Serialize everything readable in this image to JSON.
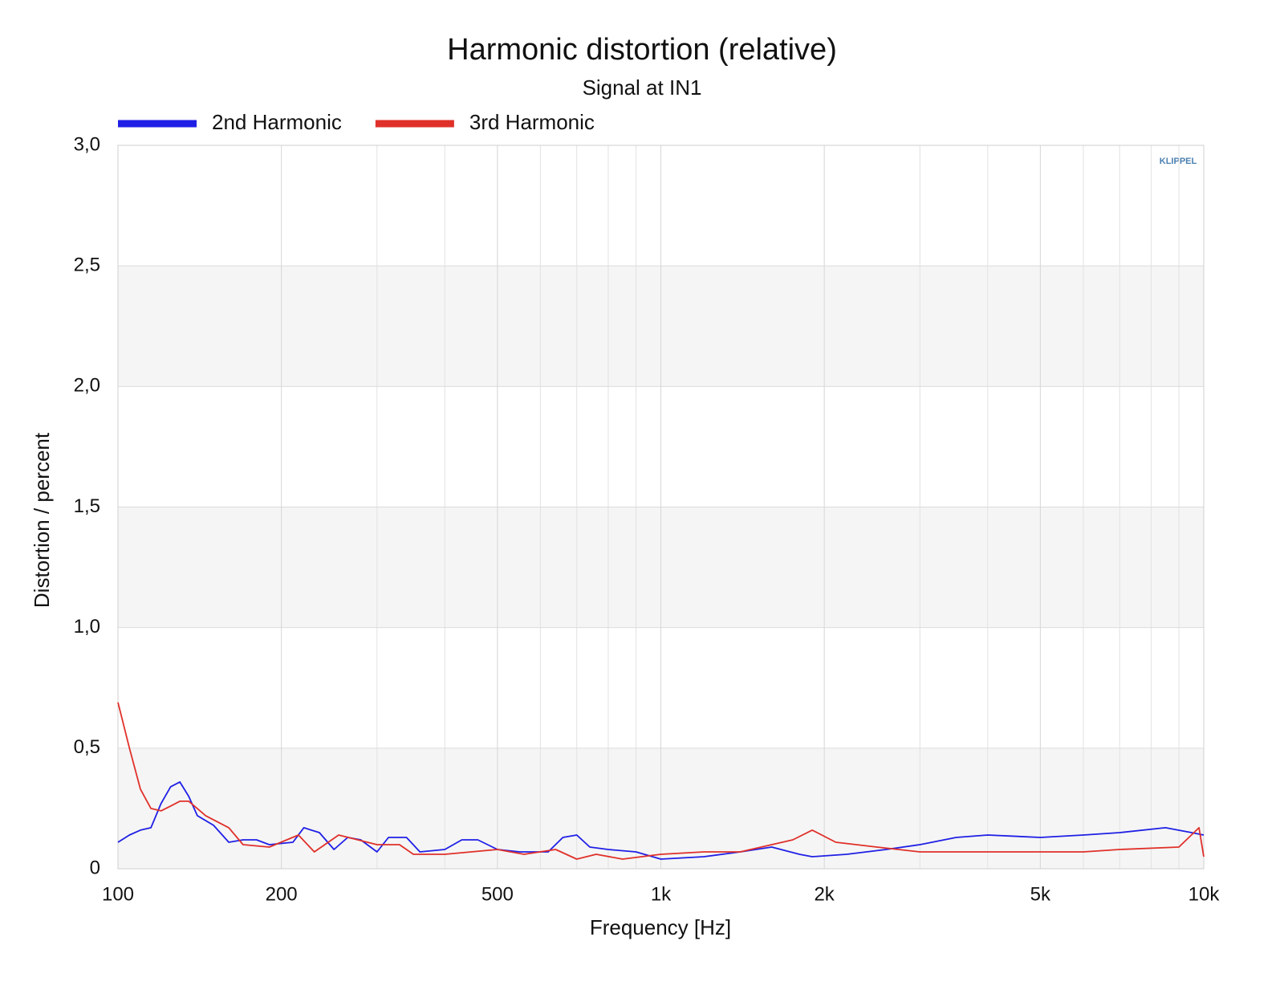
{
  "chart_data": {
    "type": "line",
    "title": "Harmonic distortion (relative)",
    "subtitle": "Signal at IN1",
    "x_label": "Frequency [Hz]",
    "y_label": "Distortion / percent",
    "logo": "KLIPPEL",
    "xscale": "log",
    "xlim": [
      100,
      10000
    ],
    "xticks": [
      100,
      200,
      500,
      {
        "value": 1000,
        "label": "1k"
      },
      {
        "value": 2000,
        "label": "2k"
      },
      {
        "value": 5000,
        "label": "5k"
      },
      {
        "value": 10000,
        "label": "10k"
      }
    ],
    "xminor": [
      300,
      400,
      600,
      700,
      800,
      900,
      3000,
      4000,
      6000,
      7000,
      8000,
      9000
    ],
    "ylim": [
      0,
      3
    ],
    "yticks": [
      0,
      {
        "value": 0.5,
        "label": "0,5"
      },
      {
        "value": 1,
        "label": "1,0"
      },
      {
        "value": 1.5,
        "label": "1,5"
      },
      {
        "value": 2,
        "label": "2,0"
      },
      {
        "value": 2.5,
        "label": "2,5"
      },
      {
        "value": 3,
        "label": "3,0"
      }
    ],
    "grid": true,
    "legend": "top-left",
    "series": [
      {
        "name": "2nd Harmonic",
        "color": "#1f1fe6",
        "x": [
          100,
          105,
          110,
          115,
          120,
          125,
          130,
          135,
          140,
          150,
          160,
          170,
          180,
          190,
          210,
          220,
          235,
          250,
          265,
          280,
          300,
          315,
          340,
          360,
          400,
          430,
          460,
          500,
          550,
          620,
          660,
          700,
          740,
          800,
          900,
          1000,
          1200,
          1400,
          1600,
          1800,
          1900,
          2200,
          2600,
          3000,
          3500,
          4000,
          5000,
          6000,
          7000,
          8500,
          9500,
          10000
        ],
        "values": [
          0.11,
          0.14,
          0.16,
          0.17,
          0.27,
          0.34,
          0.36,
          0.3,
          0.22,
          0.18,
          0.11,
          0.12,
          0.12,
          0.1,
          0.11,
          0.17,
          0.15,
          0.08,
          0.13,
          0.12,
          0.07,
          0.13,
          0.13,
          0.07,
          0.08,
          0.12,
          0.12,
          0.08,
          0.07,
          0.07,
          0.13,
          0.14,
          0.09,
          0.08,
          0.07,
          0.04,
          0.05,
          0.07,
          0.09,
          0.06,
          0.05,
          0.06,
          0.08,
          0.1,
          0.13,
          0.14,
          0.13,
          0.14,
          0.15,
          0.17,
          0.15,
          0.14
        ]
      },
      {
        "name": "3rd Harmonic",
        "color": "#e0302a",
        "x": [
          100,
          105,
          110,
          115,
          120,
          125,
          130,
          135,
          145,
          160,
          170,
          190,
          215,
          230,
          255,
          300,
          330,
          350,
          400,
          500,
          560,
          640,
          700,
          760,
          850,
          1000,
          1200,
          1400,
          1600,
          1750,
          1900,
          2100,
          2500,
          3000,
          4000,
          5000,
          6000,
          7000,
          9000,
          9800,
          10000
        ],
        "values": [
          0.69,
          0.5,
          0.33,
          0.25,
          0.24,
          0.26,
          0.28,
          0.28,
          0.22,
          0.17,
          0.1,
          0.09,
          0.14,
          0.07,
          0.14,
          0.1,
          0.1,
          0.06,
          0.06,
          0.08,
          0.06,
          0.08,
          0.04,
          0.06,
          0.04,
          0.06,
          0.07,
          0.07,
          0.1,
          0.12,
          0.16,
          0.11,
          0.09,
          0.07,
          0.07,
          0.07,
          0.07,
          0.08,
          0.09,
          0.17,
          0.05
        ]
      }
    ]
  }
}
